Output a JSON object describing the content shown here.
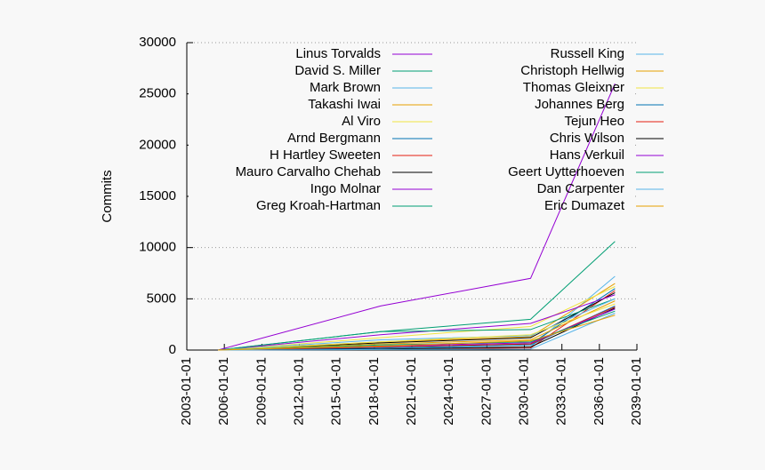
{
  "chart_data": {
    "type": "line",
    "ylabel": "Commits",
    "x": [
      "2005-07-01",
      "2018-07-01",
      "2030-07-01",
      "2037-04-01"
    ],
    "xlim": [
      "2003-01-01",
      "2039-01-01"
    ],
    "xticks": [
      "2003-01-01",
      "2006-01-01",
      "2009-01-01",
      "2012-01-01",
      "2015-01-01",
      "2018-01-01",
      "2021-01-01",
      "2024-01-01",
      "2027-01-01",
      "2030-01-01",
      "2033-01-01",
      "2036-01-01",
      "2039-01-01"
    ],
    "ylim": [
      0,
      30000
    ],
    "yticks": [
      0,
      5000,
      10000,
      15000,
      20000,
      25000,
      30000
    ],
    "grid": true,
    "series": [
      {
        "name": "Linus Torvalds",
        "color": "#9400d3",
        "values": [
          0,
          4300,
          7000,
          26000
        ]
      },
      {
        "name": "David S. Miller",
        "color": "#009e73",
        "values": [
          0,
          1800,
          3000,
          10600
        ]
      },
      {
        "name": "Mark Brown",
        "color": "#56b4e9",
        "values": [
          0,
          200,
          300,
          7200
        ]
      },
      {
        "name": "Takashi Iwai",
        "color": "#e69f00",
        "values": [
          0,
          800,
          1300,
          6500
        ]
      },
      {
        "name": "Al Viro",
        "color": "#f0e442",
        "values": [
          0,
          1200,
          2300,
          6200
        ]
      },
      {
        "name": "Arnd Bergmann",
        "color": "#0072b2",
        "values": [
          0,
          300,
          600,
          6000
        ]
      },
      {
        "name": "H Hartley Sweeten",
        "color": "#e51e10",
        "values": [
          0,
          100,
          200,
          5800
        ]
      },
      {
        "name": "Mauro Carvalho Chehab",
        "color": "#000000",
        "values": [
          0,
          700,
          1200,
          5600
        ]
      },
      {
        "name": "Ingo Molnar",
        "color": "#9400d3",
        "values": [
          0,
          1500,
          2600,
          5400
        ]
      },
      {
        "name": "Greg Kroah-Hartman",
        "color": "#009e73",
        "values": [
          0,
          1800,
          2000,
          5000
        ]
      },
      {
        "name": "Russell King",
        "color": "#56b4e9",
        "values": [
          0,
          1000,
          1400,
          5000
        ]
      },
      {
        "name": "Christoph Hellwig",
        "color": "#e69f00",
        "values": [
          0,
          600,
          1000,
          4800
        ]
      },
      {
        "name": "Thomas Gleixner",
        "color": "#f0e442",
        "values": [
          0,
          800,
          1500,
          4500
        ]
      },
      {
        "name": "Johannes Berg",
        "color": "#0072b2",
        "values": [
          0,
          200,
          500,
          4300
        ]
      },
      {
        "name": "Tejun Heo",
        "color": "#e51e10",
        "values": [
          0,
          300,
          600,
          4200
        ]
      },
      {
        "name": "Chris Wilson",
        "color": "#000000",
        "values": [
          0,
          100,
          300,
          4100
        ]
      },
      {
        "name": "Hans Verkuil",
        "color": "#9400d3",
        "values": [
          0,
          400,
          700,
          4000
        ]
      },
      {
        "name": "Geert Uytterhoeven",
        "color": "#009e73",
        "values": [
          0,
          500,
          800,
          3800
        ]
      },
      {
        "name": "Dan Carpenter",
        "color": "#56b4e9",
        "values": [
          0,
          50,
          100,
          3600
        ]
      },
      {
        "name": "Eric Dumazet",
        "color": "#e69f00",
        "values": [
          0,
          400,
          900,
          3400
        ]
      }
    ]
  }
}
